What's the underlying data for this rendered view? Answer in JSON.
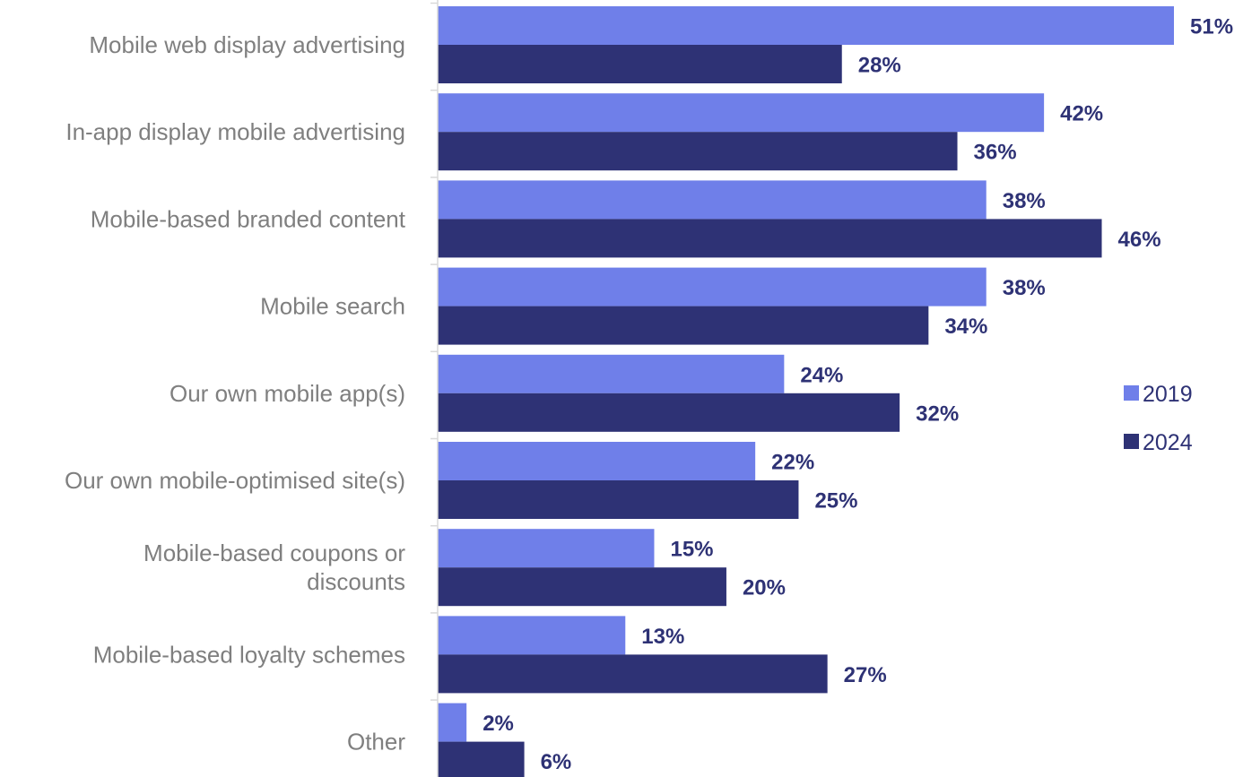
{
  "chart_data": {
    "type": "bar",
    "orientation": "horizontal",
    "categories": [
      [
        "Mobile web display advertising"
      ],
      [
        "In-app display mobile advertising"
      ],
      [
        "Mobile-based branded content"
      ],
      [
        "Mobile search"
      ],
      [
        "Our own mobile app(s)"
      ],
      [
        "Our own mobile-optimised site(s)"
      ],
      [
        "Mobile-based coupons or",
        "discounts"
      ],
      [
        "Mobile-based loyalty schemes"
      ],
      [
        "Other"
      ]
    ],
    "series": [
      {
        "name": "2019",
        "color": "#6f7fe9",
        "values": [
          51,
          42,
          38,
          38,
          24,
          22,
          15,
          13,
          2
        ],
        "labels": [
          "51%",
          "42%",
          "38%",
          "38%",
          "24%",
          "22%",
          "15%",
          "13%",
          "2%"
        ]
      },
      {
        "name": "2024",
        "color": "#2e3275",
        "values": [
          28,
          36,
          46,
          34,
          32,
          25,
          20,
          27,
          6
        ],
        "labels": [
          "28%",
          "36%",
          "46%",
          "34%",
          "32%",
          "25%",
          "20%",
          "27%",
          "6%"
        ]
      }
    ],
    "xlim": [
      0,
      51
    ],
    "grid": false,
    "legend_position": "right"
  }
}
